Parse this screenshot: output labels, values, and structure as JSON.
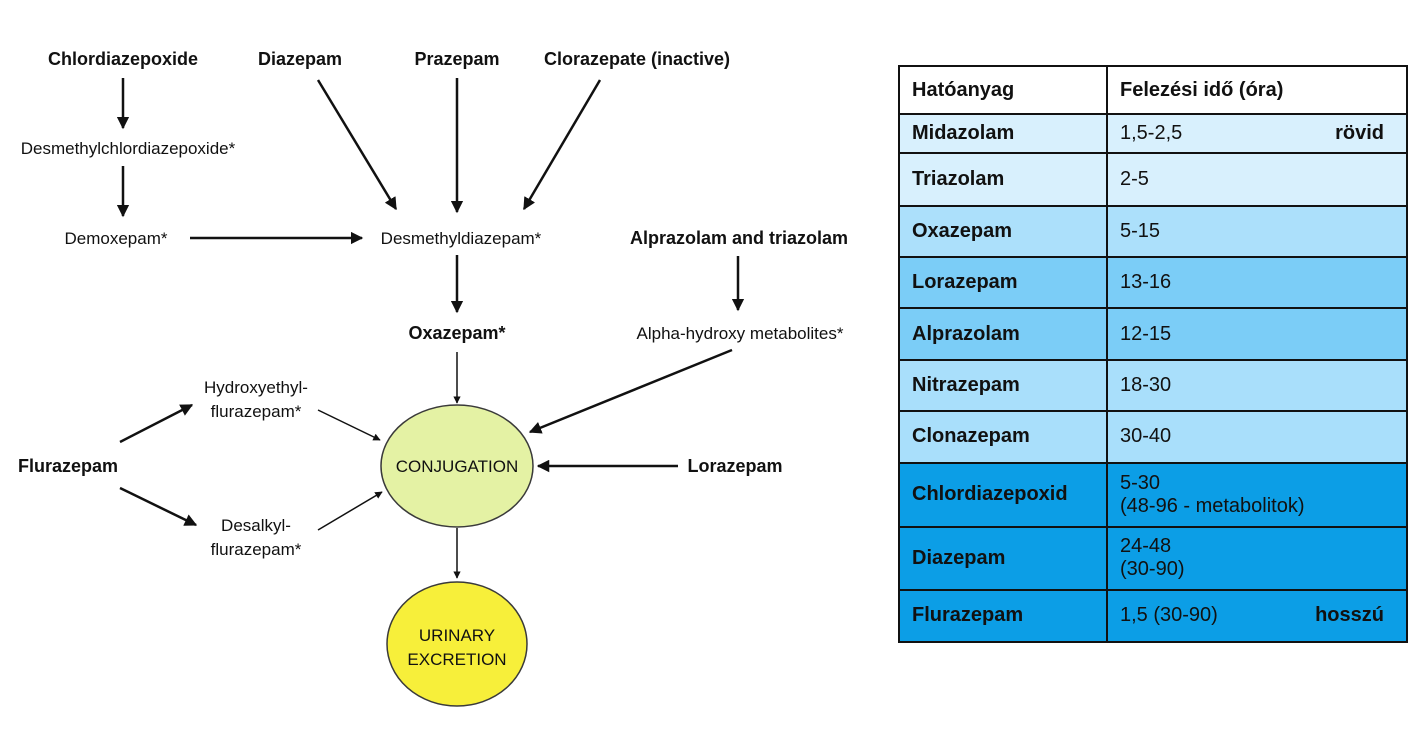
{
  "diagram": {
    "nodes": {
      "chlordiazepoxide": "Chlordiazepoxide",
      "diazepam": "Diazepam",
      "prazepam": "Prazepam",
      "clorazepate": "Clorazepate (inactive)",
      "desmethylchlordiazepoxide": "Desmethylchlordiazepoxide*",
      "demoxepam": "Demoxepam*",
      "desmethyldiazepam": "Desmethyldiazepam*",
      "alprazolam_triazolam": "Alprazolam and triazolam",
      "oxazepam": "Oxazepam*",
      "alpha_hydroxy": "Alpha-hydroxy metabolites*",
      "hydroxyethyl_1": "Hydroxyethyl-",
      "hydroxyethyl_2": "flurazepam*",
      "flurazepam": "Flurazepam",
      "conjugation": "CONJUGATION",
      "lorazepam": "Lorazepam",
      "desalkyl_1": "Desalkyl-",
      "desalkyl_2": "flurazepam*",
      "urinary_1": "URINARY",
      "urinary_2": "EXCRETION"
    },
    "colors": {
      "conjugation_fill": "#e4f2a4",
      "excretion_fill": "#f7ef3a",
      "ellipse_stroke": "#3a3a3a"
    }
  },
  "table": {
    "headers": [
      "Hatóanyag",
      "Felezési idő (óra)"
    ],
    "rows": [
      {
        "name": "Midazolam",
        "value": "1,5-2,5",
        "note": "rövid",
        "bg": "#d8f0fd"
      },
      {
        "name": "Triazolam",
        "value": "2-5",
        "bg": "#d8f0fd"
      },
      {
        "name": "Oxazepam",
        "value": "5-15",
        "bg": "#ace0fb"
      },
      {
        "name": "Lorazepam",
        "value": "13-16",
        "bg": "#7bcdf7"
      },
      {
        "name": "Alprazolam",
        "value": "12-15",
        "bg": "#7bcdf7"
      },
      {
        "name": "Nitrazepam",
        "value": "18-30",
        "bg": "#a9dffb"
      },
      {
        "name": "Clonazepam",
        "value": "30-40",
        "bg": "#a9dffb"
      },
      {
        "name": "Chlordiazepoxid",
        "value": "5-30",
        "value2": "(48-96 - metabolitok)",
        "bg": "#0c9ee6"
      },
      {
        "name": "Diazepam",
        "value": "24-48",
        "value2": "(30-90)",
        "bg": "#0c9ee6"
      },
      {
        "name": "Flurazepam",
        "value": "1,5 (30-90)",
        "note": "hosszú",
        "bg": "#0c9ee6"
      }
    ]
  }
}
